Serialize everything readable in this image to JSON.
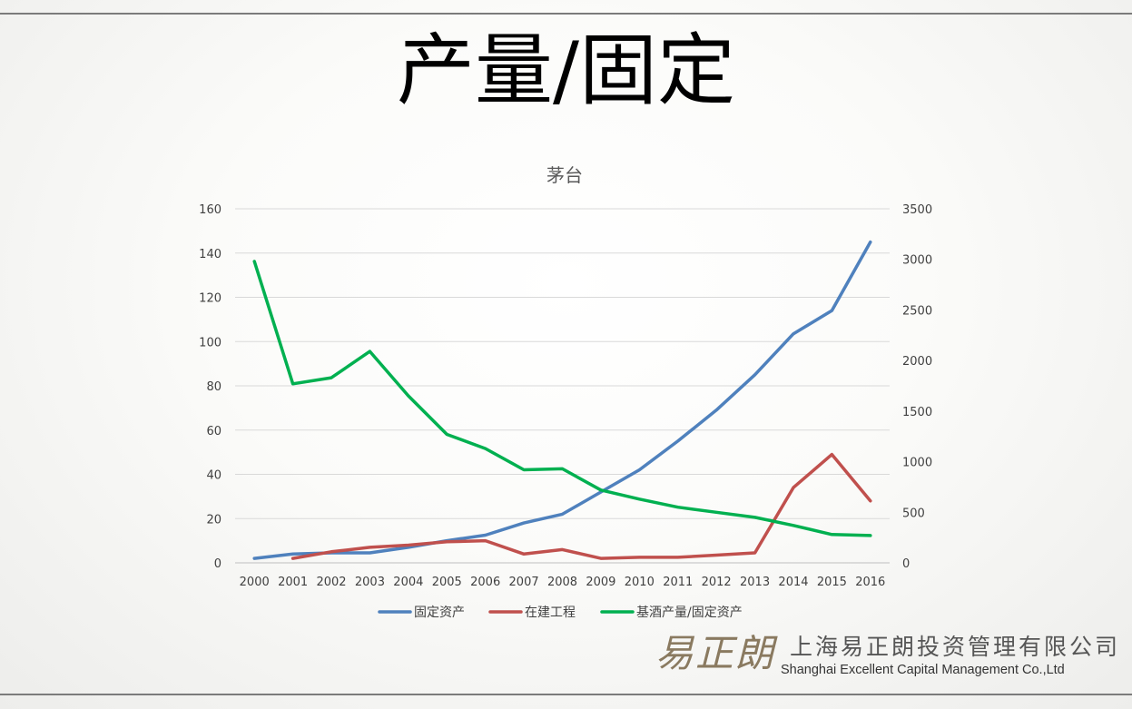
{
  "slide": {
    "title": "产量/固定",
    "company_cn": "上海易正朗投资管理有限公司",
    "company_en": "Shanghai Excellent Capital Management Co.,Ltd",
    "logo_text": "易正朗"
  },
  "chart_data": {
    "type": "line",
    "title": "茅台",
    "categories": [
      "2000",
      "2001",
      "2002",
      "2003",
      "2004",
      "2005",
      "2006",
      "2007",
      "2008",
      "2009",
      "2010",
      "2011",
      "2012",
      "2013",
      "2014",
      "2015",
      "2016"
    ],
    "y_left": {
      "min": 0,
      "max": 160,
      "ticks": [
        "0",
        "20",
        "40",
        "60",
        "80",
        "100",
        "120",
        "140",
        "160"
      ]
    },
    "y_right": {
      "min": 0,
      "max": 3500,
      "ticks": [
        "0",
        "500",
        "1000",
        "1500",
        "2000",
        "2500",
        "3000",
        "3500"
      ]
    },
    "grid": true,
    "legend_position": "bottom",
    "series": [
      {
        "name": "固定资产",
        "axis": "left",
        "color": "#4f81bd",
        "values": [
          2,
          4,
          4.5,
          4.5,
          7,
          10,
          12.5,
          18,
          22,
          32,
          42,
          55,
          69,
          85,
          103.5,
          114,
          145
        ]
      },
      {
        "name": "在建工程",
        "axis": "left",
        "color": "#c0504d",
        "values": [
          null,
          2,
          5,
          7,
          8,
          9.5,
          10,
          4,
          6,
          2,
          2.5,
          2.5,
          3.5,
          4.5,
          34,
          49,
          28
        ]
      },
      {
        "name": "基酒产量/固定资产",
        "axis": "right",
        "color": "#00b050",
        "values": [
          2980,
          1770,
          1830,
          2090,
          1650,
          1270,
          1130,
          920,
          930,
          720,
          630,
          550,
          500,
          450,
          370,
          280,
          270
        ]
      }
    ]
  }
}
